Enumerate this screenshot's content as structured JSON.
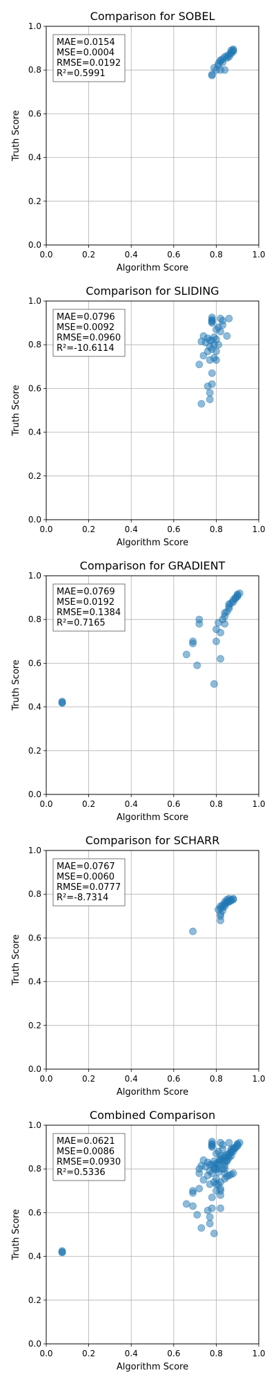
{
  "chart_data": [
    {
      "type": "scatter",
      "title": "Comparison for SOBEL",
      "xlabel": "Algorithm Score",
      "ylabel": "Truth Score",
      "xlim": [
        0,
        1
      ],
      "ylim": [
        0,
        1
      ],
      "xticks": [
        "0.0",
        "0.2",
        "0.4",
        "0.6",
        "0.8",
        "1.0"
      ],
      "yticks": [
        "0.0",
        "0.2",
        "0.4",
        "0.6",
        "0.8",
        "1.0"
      ],
      "grid": true,
      "stats": [
        "MAE=0.0154",
        "MSE=0.0004",
        "RMSE=0.0192",
        "R²=0.5991"
      ],
      "point_color": "#1f77b4",
      "points": [
        [
          0.78,
          0.775
        ],
        [
          0.78,
          0.78
        ],
        [
          0.79,
          0.81
        ],
        [
          0.8,
          0.8
        ],
        [
          0.81,
          0.82
        ],
        [
          0.81,
          0.83
        ],
        [
          0.82,
          0.84
        ],
        [
          0.82,
          0.8
        ],
        [
          0.82,
          0.845
        ],
        [
          0.83,
          0.835
        ],
        [
          0.83,
          0.85
        ],
        [
          0.84,
          0.8
        ],
        [
          0.84,
          0.86
        ],
        [
          0.85,
          0.855
        ],
        [
          0.85,
          0.865
        ],
        [
          0.86,
          0.87
        ],
        [
          0.86,
          0.86
        ],
        [
          0.87,
          0.875
        ],
        [
          0.87,
          0.88
        ],
        [
          0.87,
          0.89
        ],
        [
          0.88,
          0.885
        ],
        [
          0.88,
          0.895
        ],
        [
          0.88,
          0.89
        ]
      ]
    },
    {
      "type": "scatter",
      "title": "Comparison for SLIDING",
      "xlabel": "Algorithm Score",
      "ylabel": "Truth Score",
      "xlim": [
        0,
        1
      ],
      "ylim": [
        0,
        1
      ],
      "xticks": [
        "0.0",
        "0.2",
        "0.4",
        "0.6",
        "0.8",
        "1.0"
      ],
      "yticks": [
        "0.0",
        "0.2",
        "0.4",
        "0.6",
        "0.8",
        "1.0"
      ],
      "grid": true,
      "stats": [
        "MAE=0.0796",
        "MSE=0.0092",
        "RMSE=0.0960",
        "R²=-10.6114"
      ],
      "point_color": "#1f77b4",
      "points": [
        [
          0.73,
          0.53
        ],
        [
          0.77,
          0.55
        ],
        [
          0.77,
          0.58
        ],
        [
          0.76,
          0.61
        ],
        [
          0.78,
          0.62
        ],
        [
          0.78,
          0.67
        ],
        [
          0.72,
          0.71
        ],
        [
          0.77,
          0.73
        ],
        [
          0.8,
          0.73
        ],
        [
          0.79,
          0.74
        ],
        [
          0.74,
          0.75
        ],
        [
          0.76,
          0.77
        ],
        [
          0.78,
          0.78
        ],
        [
          0.8,
          0.77
        ],
        [
          0.77,
          0.79
        ],
        [
          0.79,
          0.8
        ],
        [
          0.81,
          0.8
        ],
        [
          0.75,
          0.81
        ],
        [
          0.77,
          0.82
        ],
        [
          0.73,
          0.815
        ],
        [
          0.78,
          0.82
        ],
        [
          0.8,
          0.825
        ],
        [
          0.76,
          0.83
        ],
        [
          0.79,
          0.835
        ],
        [
          0.74,
          0.84
        ],
        [
          0.85,
          0.84
        ],
        [
          0.82,
          0.86
        ],
        [
          0.8,
          0.87
        ],
        [
          0.81,
          0.88
        ],
        [
          0.83,
          0.89
        ],
        [
          0.78,
          0.9
        ],
        [
          0.78,
          0.905
        ],
        [
          0.78,
          0.91
        ],
        [
          0.83,
          0.91
        ],
        [
          0.78,
          0.915
        ],
        [
          0.82,
          0.92
        ],
        [
          0.86,
          0.92
        ],
        [
          0.78,
          0.925
        ]
      ]
    },
    {
      "type": "scatter",
      "title": "Comparison for GRADIENT",
      "xlabel": "Algorithm Score",
      "ylabel": "Truth Score",
      "xlim": [
        0,
        1
      ],
      "ylim": [
        0,
        1
      ],
      "xticks": [
        "0.0",
        "0.2",
        "0.4",
        "0.6",
        "0.8",
        "1.0"
      ],
      "yticks": [
        "0.0",
        "0.2",
        "0.4",
        "0.6",
        "0.8",
        "1.0"
      ],
      "grid": true,
      "stats": [
        "MAE=0.0769",
        "MSE=0.0192",
        "RMSE=0.1384",
        "R²=0.7165"
      ],
      "point_color": "#1f77b4",
      "points": [
        [
          0.075,
          0.42
        ],
        [
          0.075,
          0.425
        ],
        [
          0.075,
          0.418
        ],
        [
          0.79,
          0.505
        ],
        [
          0.71,
          0.59
        ],
        [
          0.82,
          0.62
        ],
        [
          0.66,
          0.64
        ],
        [
          0.69,
          0.69
        ],
        [
          0.69,
          0.7
        ],
        [
          0.8,
          0.7
        ],
        [
          0.82,
          0.74
        ],
        [
          0.8,
          0.755
        ],
        [
          0.72,
          0.78
        ],
        [
          0.84,
          0.78
        ],
        [
          0.81,
          0.785
        ],
        [
          0.72,
          0.8
        ],
        [
          0.83,
          0.8
        ],
        [
          0.84,
          0.815
        ],
        [
          0.84,
          0.83
        ],
        [
          0.85,
          0.835
        ],
        [
          0.86,
          0.85
        ],
        [
          0.86,
          0.86
        ],
        [
          0.86,
          0.87
        ],
        [
          0.87,
          0.875
        ],
        [
          0.88,
          0.88
        ],
        [
          0.88,
          0.89
        ],
        [
          0.89,
          0.895
        ],
        [
          0.89,
          0.9
        ],
        [
          0.9,
          0.905
        ],
        [
          0.9,
          0.91
        ],
        [
          0.9,
          0.915
        ],
        [
          0.91,
          0.92
        ]
      ]
    },
    {
      "type": "scatter",
      "title": "Comparison for SCHARR",
      "xlabel": "Algorithm Score",
      "ylabel": "Truth Score",
      "xlim": [
        0,
        1
      ],
      "ylim": [
        0,
        1
      ],
      "xticks": [
        "0.0",
        "0.2",
        "0.4",
        "0.6",
        "0.8",
        "1.0"
      ],
      "yticks": [
        "0.0",
        "0.2",
        "0.4",
        "0.6",
        "0.8",
        "1.0"
      ],
      "grid": true,
      "stats": [
        "MAE=0.0767",
        "MSE=0.0060",
        "RMSE=0.0777",
        "R²=-8.7314"
      ],
      "point_color": "#1f77b4",
      "points": [
        [
          0.69,
          0.63
        ],
        [
          0.82,
          0.68
        ],
        [
          0.82,
          0.7
        ],
        [
          0.82,
          0.71
        ],
        [
          0.81,
          0.73
        ],
        [
          0.82,
          0.735
        ],
        [
          0.83,
          0.74
        ],
        [
          0.83,
          0.75
        ],
        [
          0.84,
          0.745
        ],
        [
          0.84,
          0.755
        ],
        [
          0.85,
          0.76
        ],
        [
          0.85,
          0.765
        ],
        [
          0.86,
          0.77
        ],
        [
          0.86,
          0.765
        ],
        [
          0.87,
          0.775
        ],
        [
          0.87,
          0.77
        ],
        [
          0.88,
          0.78
        ],
        [
          0.86,
          0.78
        ],
        [
          0.85,
          0.775
        ],
        [
          0.84,
          0.765
        ],
        [
          0.83,
          0.725
        ],
        [
          0.82,
          0.745
        ],
        [
          0.88,
          0.775
        ]
      ]
    },
    {
      "type": "scatter",
      "title": "Combined Comparison",
      "xlabel": "Algorithm Score",
      "ylabel": "Truth Score",
      "xlim": [
        0,
        1
      ],
      "ylim": [
        0,
        1
      ],
      "xticks": [
        "0.0",
        "0.2",
        "0.4",
        "0.6",
        "0.8",
        "1.0"
      ],
      "yticks": [
        "0.0",
        "0.2",
        "0.4",
        "0.6",
        "0.8",
        "1.0"
      ],
      "grid": true,
      "stats": [
        "MAE=0.0621",
        "MSE=0.0086",
        "RMSE=0.0930",
        "R²=0.5336"
      ],
      "point_color": "#1f77b4",
      "points": [
        [
          0.075,
          0.42
        ],
        [
          0.075,
          0.425
        ],
        [
          0.075,
          0.418
        ],
        [
          0.79,
          0.505
        ],
        [
          0.73,
          0.53
        ],
        [
          0.77,
          0.55
        ],
        [
          0.71,
          0.59
        ],
        [
          0.77,
          0.58
        ],
        [
          0.76,
          0.61
        ],
        [
          0.78,
          0.62
        ],
        [
          0.82,
          0.62
        ],
        [
          0.69,
          0.63
        ],
        [
          0.66,
          0.64
        ],
        [
          0.78,
          0.67
        ],
        [
          0.82,
          0.68
        ],
        [
          0.69,
          0.69
        ],
        [
          0.69,
          0.7
        ],
        [
          0.8,
          0.7
        ],
        [
          0.82,
          0.7
        ],
        [
          0.72,
          0.71
        ],
        [
          0.82,
          0.71
        ],
        [
          0.77,
          0.73
        ],
        [
          0.8,
          0.73
        ],
        [
          0.81,
          0.73
        ],
        [
          0.79,
          0.74
        ],
        [
          0.82,
          0.74
        ],
        [
          0.74,
          0.75
        ],
        [
          0.8,
          0.755
        ],
        [
          0.84,
          0.755
        ],
        [
          0.76,
          0.77
        ],
        [
          0.85,
          0.765
        ],
        [
          0.86,
          0.77
        ],
        [
          0.87,
          0.775
        ],
        [
          0.88,
          0.78
        ],
        [
          0.72,
          0.78
        ],
        [
          0.78,
          0.78
        ],
        [
          0.84,
          0.78
        ],
        [
          0.81,
          0.785
        ],
        [
          0.77,
          0.79
        ],
        [
          0.72,
          0.8
        ],
        [
          0.79,
          0.8
        ],
        [
          0.8,
          0.8
        ],
        [
          0.81,
          0.8
        ],
        [
          0.83,
          0.8
        ],
        [
          0.84,
          0.8
        ],
        [
          0.75,
          0.81
        ],
        [
          0.79,
          0.81
        ],
        [
          0.73,
          0.815
        ],
        [
          0.84,
          0.815
        ],
        [
          0.77,
          0.82
        ],
        [
          0.78,
          0.82
        ],
        [
          0.81,
          0.82
        ],
        [
          0.8,
          0.825
        ],
        [
          0.76,
          0.83
        ],
        [
          0.81,
          0.83
        ],
        [
          0.84,
          0.83
        ],
        [
          0.79,
          0.835
        ],
        [
          0.85,
          0.835
        ],
        [
          0.74,
          0.84
        ],
        [
          0.82,
          0.84
        ],
        [
          0.85,
          0.84
        ],
        [
          0.82,
          0.845
        ],
        [
          0.83,
          0.85
        ],
        [
          0.86,
          0.85
        ],
        [
          0.85,
          0.855
        ],
        [
          0.82,
          0.86
        ],
        [
          0.84,
          0.86
        ],
        [
          0.86,
          0.86
        ],
        [
          0.85,
          0.865
        ],
        [
          0.8,
          0.87
        ],
        [
          0.86,
          0.87
        ],
        [
          0.87,
          0.875
        ],
        [
          0.81,
          0.88
        ],
        [
          0.88,
          0.88
        ],
        [
          0.87,
          0.88
        ],
        [
          0.83,
          0.89
        ],
        [
          0.87,
          0.89
        ],
        [
          0.88,
          0.89
        ],
        [
          0.89,
          0.895
        ],
        [
          0.78,
          0.9
        ],
        [
          0.89,
          0.9
        ],
        [
          0.78,
          0.905
        ],
        [
          0.9,
          0.905
        ],
        [
          0.78,
          0.91
        ],
        [
          0.83,
          0.91
        ],
        [
          0.9,
          0.91
        ],
        [
          0.78,
          0.915
        ],
        [
          0.9,
          0.915
        ],
        [
          0.82,
          0.92
        ],
        [
          0.86,
          0.92
        ],
        [
          0.91,
          0.92
        ],
        [
          0.78,
          0.925
        ],
        [
          0.88,
          0.895
        ],
        [
          0.87,
          0.86
        ],
        [
          0.83,
          0.835
        ]
      ]
    }
  ]
}
